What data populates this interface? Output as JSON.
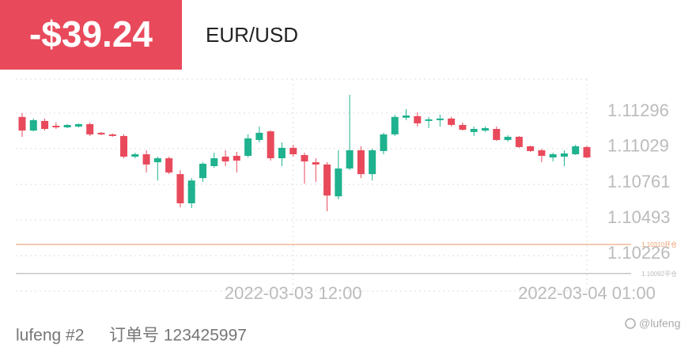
{
  "header": {
    "pnl": "-$39.24",
    "symbol": "EUR/USD"
  },
  "chart_data": {
    "type": "candlestick",
    "categories": [
      null,
      null,
      null,
      null,
      null,
      null,
      null,
      null,
      null,
      null,
      null,
      null,
      null,
      null,
      null,
      null,
      null,
      null,
      null,
      null,
      null,
      null,
      null,
      null,
      "2022-03-03 12:00",
      null,
      null,
      null,
      null,
      null,
      null,
      null,
      null,
      null,
      null,
      null,
      null,
      null,
      null,
      null,
      null,
      null,
      null,
      null,
      null,
      null,
      null,
      null,
      null,
      null,
      "2022-03-04 01:00"
    ],
    "ohlc": [
      [
        1.11267,
        1.11296,
        1.11118,
        1.11165
      ],
      [
        1.11165,
        1.11255,
        1.11159,
        1.11243
      ],
      [
        1.11237,
        1.11255,
        1.11165,
        1.11177
      ],
      [
        1.11201,
        1.11225,
        1.11177,
        1.11189
      ],
      [
        1.11189,
        1.11213,
        1.11183,
        1.11207
      ],
      [
        1.11195,
        1.11219,
        1.11189,
        1.11213
      ],
      [
        1.11213,
        1.11225,
        1.11124,
        1.11136
      ],
      [
        1.11148,
        1.11154,
        1.1113,
        1.11136
      ],
      [
        1.11136,
        1.11142,
        1.11118,
        1.11124
      ],
      [
        1.11124,
        1.11136,
        1.10957,
        1.10969
      ],
      [
        1.10969,
        1.10999,
        1.10957,
        1.10987
      ],
      [
        1.10987,
        1.11017,
        1.1085,
        1.1091
      ],
      [
        1.10927,
        1.10969,
        1.1079,
        1.10957
      ],
      [
        1.10957,
        1.10969,
        1.10838,
        1.1085
      ],
      [
        1.10838,
        1.10868,
        1.10589,
        1.10619
      ],
      [
        1.10619,
        1.10808,
        1.10583,
        1.1079
      ],
      [
        1.10808,
        1.10927,
        1.10779,
        1.10916
      ],
      [
        1.10898,
        1.10999,
        1.10886,
        1.10957
      ],
      [
        1.10969,
        1.11017,
        1.10898,
        1.10933
      ],
      [
        1.10975,
        1.11005,
        1.1085,
        1.10939
      ],
      [
        1.10975,
        1.11136,
        1.10963,
        1.11106
      ],
      [
        1.11094,
        1.11195,
        1.11076,
        1.11148
      ],
      [
        1.11159,
        1.11165,
        1.10939,
        1.10957
      ],
      [
        1.10957,
        1.11076,
        1.10898,
        1.11035
      ],
      [
        1.11035,
        1.11058,
        1.10969,
        1.10987
      ],
      [
        1.10981,
        1.10999,
        1.10767,
        1.10933
      ],
      [
        1.10927,
        1.10957,
        1.10779,
        1.1091
      ],
      [
        1.1091,
        1.10927,
        1.10559,
        1.10677
      ],
      [
        1.10671,
        1.11017,
        1.10648,
        1.1088
      ],
      [
        1.1088,
        1.11433,
        1.10868,
        1.11017
      ],
      [
        1.11017,
        1.11047,
        1.10808,
        1.10838
      ],
      [
        1.10838,
        1.11029,
        1.1079,
        1.11017
      ],
      [
        1.11011,
        1.11148,
        1.10987,
        1.11136
      ],
      [
        1.11136,
        1.11284,
        1.11124,
        1.11267
      ],
      [
        1.11261,
        1.11326,
        1.11243,
        1.11278
      ],
      [
        1.11273,
        1.11302,
        1.11195,
        1.11219
      ],
      [
        1.11237,
        1.11267,
        1.11183,
        1.11249
      ],
      [
        1.11243,
        1.11284,
        1.11195,
        1.11255
      ],
      [
        1.11255,
        1.11267,
        1.11195,
        1.11207
      ],
      [
        1.11207,
        1.11225,
        1.11165,
        1.11171
      ],
      [
        1.11154,
        1.11195,
        1.11124,
        1.11177
      ],
      [
        1.11165,
        1.11195,
        1.11154,
        1.11183
      ],
      [
        1.11177,
        1.11195,
        1.11088,
        1.11094
      ],
      [
        1.11094,
        1.1113,
        1.11082,
        1.11118
      ],
      [
        1.11118,
        1.11124,
        1.11035,
        1.11041
      ],
      [
        1.11047,
        1.11052,
        1.11005,
        1.11011
      ],
      [
        1.11017,
        1.11029,
        1.10927,
        1.10975
      ],
      [
        1.10963,
        1.10999,
        1.10933,
        1.10987
      ],
      [
        1.10969,
        1.11017,
        1.10898,
        1.10993
      ],
      [
        1.10987,
        1.11058,
        1.10981,
        1.11047
      ],
      [
        1.11041,
        1.11052,
        1.10957,
        1.10963
      ]
    ],
    "up_color": "#1fb28e",
    "down_color": "#e84a5c",
    "ylim": [
      1.0996,
      1.11551
    ],
    "yticks": [
      1.11296,
      1.11029,
      1.10761,
      1.10493,
      1.10226
    ],
    "grid": true,
    "price_lines": [
      {
        "value": 1.1031,
        "label": "1.10310开仓",
        "color": "#f0a070"
      },
      {
        "value": 1.10092,
        "label": "1.10092平仓",
        "color": "#bbbbbb"
      }
    ]
  },
  "footer": {
    "account": "lufeng #2",
    "order": "订单号 123425997",
    "watermark": "@lufeng"
  }
}
